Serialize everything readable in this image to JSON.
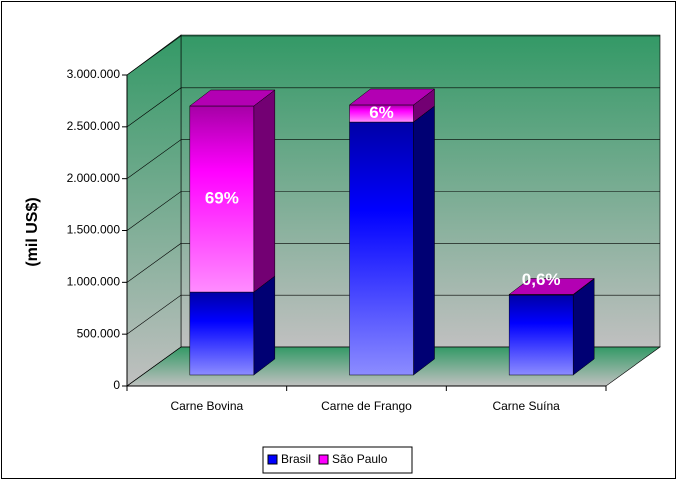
{
  "chart_data": {
    "type": "bar3d_stacked",
    "y_label": "(mil US$)",
    "categories": [
      "Carne Bovina",
      "Carne de Frango",
      "Carne Suína"
    ],
    "series": [
      {
        "name": "Brasil",
        "color": "#0000ff",
        "values": [
          800000,
          2440000,
          772000
        ]
      },
      {
        "name": "São Paulo",
        "color": "#ff00ff",
        "values": [
          1795000,
          165000,
          5000
        ],
        "share_labels": [
          "69%",
          "6%",
          "0,6%"
        ]
      }
    ],
    "ylim": [
      0,
      3000000
    ],
    "yticks": [
      {
        "value": 0,
        "label": "0"
      },
      {
        "value": 500000,
        "label": "500.000"
      },
      {
        "value": 1000000,
        "label": "1.000.000"
      },
      {
        "value": 1500000,
        "label": "1.500.000"
      },
      {
        "value": 2000000,
        "label": "2.000.000"
      },
      {
        "value": 2500000,
        "label": "2.500.000"
      },
      {
        "value": 3000000,
        "label": "3.000.000"
      }
    ],
    "grid": true,
    "legend": "bottom"
  }
}
